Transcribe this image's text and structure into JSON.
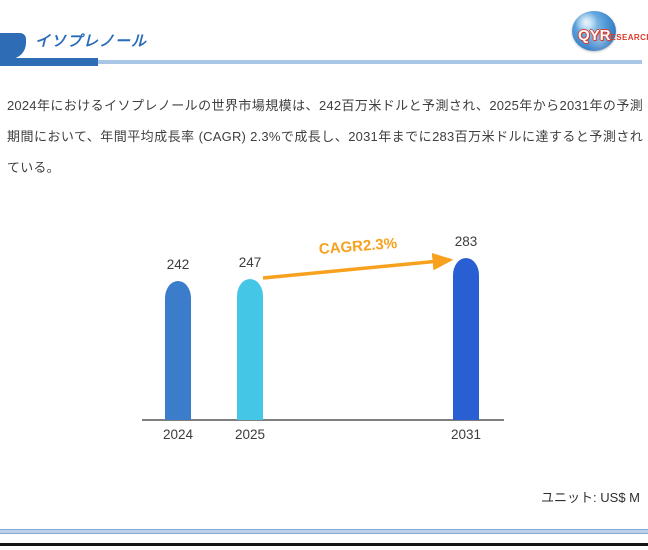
{
  "header": {
    "title": "イソプレノール",
    "accent_color": "#2E6DB6",
    "logo": {
      "qyr": "QYR",
      "research": "ESEARCH"
    }
  },
  "summary": {
    "text": "2024年におけるイソプレノールの世界市場規模は、242百万米ドルと予測され、2025年から2031年の予測期間において、年間平均成長率 (CAGR) 2.3%で成長し、2031年までに283百万米ドルに達すると予測されている。"
  },
  "chart_data": {
    "type": "bar",
    "title": "",
    "xlabel": "",
    "ylabel": "",
    "categories": [
      "2024",
      "2025",
      "2031"
    ],
    "values": [
      242,
      247,
      283
    ],
    "bar_colors": [
      "#3B7CCB",
      "#44C7E6",
      "#2A5FD4"
    ],
    "annotation": "CAGR2.3%",
    "annotation_color": "#F7A11E",
    "baseline_color": "#7F7F7F",
    "unit_label": "ユニット: US$ M",
    "ylim": [
      0,
      300
    ],
    "grid": false,
    "legend": "none"
  }
}
